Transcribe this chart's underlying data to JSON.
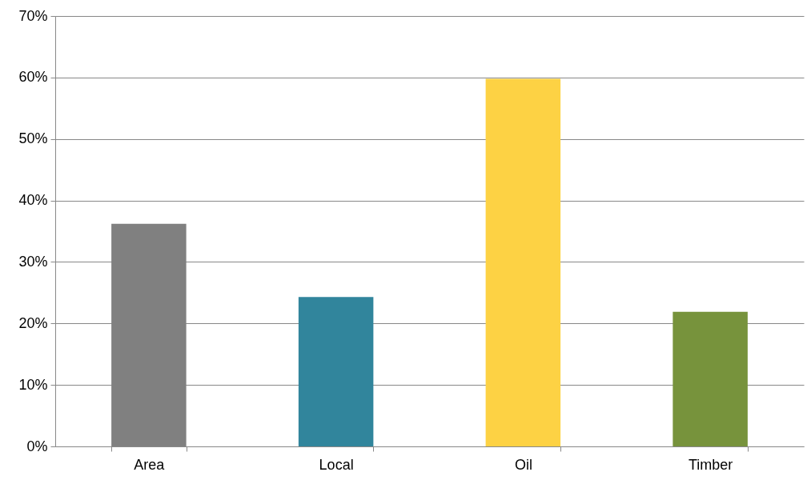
{
  "chart_data": {
    "type": "bar",
    "categories": [
      "Area",
      "Local",
      "Oil",
      "Timber"
    ],
    "values": [
      36.2,
      24.3,
      59.8,
      21.9
    ],
    "colors": [
      "#808080",
      "#31859c",
      "#fdd244",
      "#77933c"
    ],
    "ylim": [
      0,
      70
    ],
    "yticks": [
      {
        "value": 0,
        "label": "0%"
      },
      {
        "value": 10,
        "label": "10%"
      },
      {
        "value": 20,
        "label": "20%"
      },
      {
        "value": 30,
        "label": "30%"
      },
      {
        "value": 40,
        "label": "40%"
      },
      {
        "value": 50,
        "label": "50%"
      },
      {
        "value": 60,
        "label": "60%"
      },
      {
        "value": 70,
        "label": "70%"
      }
    ],
    "grid": "y"
  }
}
